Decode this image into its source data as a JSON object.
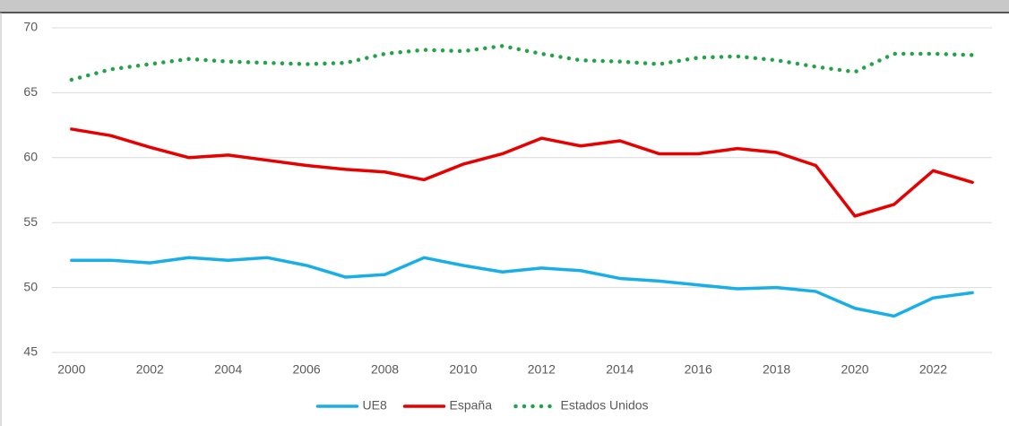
{
  "chart_data": {
    "type": "line",
    "x": [
      2000,
      2001,
      2002,
      2003,
      2004,
      2005,
      2006,
      2007,
      2008,
      2009,
      2010,
      2011,
      2012,
      2013,
      2014,
      2015,
      2016,
      2017,
      2018,
      2019,
      2020,
      2021,
      2022,
      2023
    ],
    "xlim": [
      1999.5,
      2023.5
    ],
    "xticks": [
      2000,
      2002,
      2004,
      2006,
      2008,
      2010,
      2012,
      2014,
      2016,
      2018,
      2020,
      2022
    ],
    "ylim": [
      45,
      70
    ],
    "yticks": [
      45,
      50,
      55,
      60,
      65,
      70
    ],
    "grid": true,
    "legend": "bottom",
    "series": [
      {
        "name": "UE8",
        "color": "#1aaee6",
        "style": "solid",
        "values": [
          52.1,
          52.1,
          51.9,
          52.3,
          52.1,
          52.3,
          51.7,
          50.8,
          51.0,
          52.3,
          51.7,
          51.2,
          51.5,
          51.3,
          50.7,
          50.5,
          50.2,
          49.9,
          50.0,
          49.7,
          48.4,
          47.8,
          49.2,
          49.6
        ]
      },
      {
        "name": "España",
        "color": "#e60000",
        "style": "solid",
        "values": [
          62.2,
          61.7,
          60.8,
          60.0,
          60.2,
          59.8,
          59.4,
          59.1,
          58.9,
          58.3,
          59.5,
          60.3,
          61.5,
          60.9,
          61.3,
          60.3,
          60.3,
          60.7,
          60.4,
          59.4,
          55.5,
          56.4,
          59.0,
          58.1
        ]
      },
      {
        "name": "Estados Unidos",
        "color": "#21a346",
        "style": "dotted",
        "values": [
          66.0,
          66.8,
          67.2,
          67.6,
          67.4,
          67.3,
          67.2,
          67.3,
          68.0,
          68.3,
          68.2,
          68.6,
          68.0,
          67.5,
          67.4,
          67.2,
          67.7,
          67.8,
          67.5,
          67.0,
          66.6,
          68.0,
          68.0,
          67.9
        ]
      }
    ]
  }
}
